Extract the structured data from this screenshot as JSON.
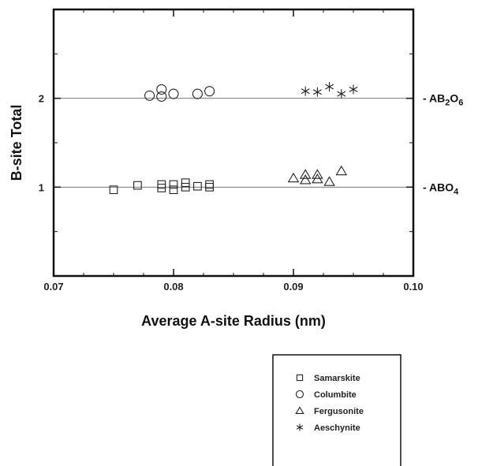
{
  "chart_data": {
    "type": "scatter",
    "title": "",
    "xlabel": "Average A-site Radius (nm)",
    "ylabel": "B-site Total",
    "xlim": [
      0.07,
      0.1
    ],
    "ylim": [
      0,
      3
    ],
    "x_ticks": [
      "0.07",
      "0.08",
      "0.09",
      "0.10"
    ],
    "y_ticks": [
      "1",
      "2"
    ],
    "grid": false,
    "legend_position": "bottom-right",
    "reference_lines": [
      {
        "y": 2,
        "label_prefix": "- AB",
        "sub1": "2",
        "mid": "O",
        "sub2": "6"
      },
      {
        "y": 1,
        "label_prefix": "- ABO",
        "sub1": "",
        "mid": "",
        "sub2": "4"
      }
    ],
    "series": [
      {
        "name": "Samarskite",
        "marker": "square",
        "points": [
          [
            0.075,
            0.97
          ],
          [
            0.077,
            1.02
          ],
          [
            0.079,
            0.99
          ],
          [
            0.079,
            1.03
          ],
          [
            0.08,
            0.97
          ],
          [
            0.08,
            1.03
          ],
          [
            0.081,
            1.0
          ],
          [
            0.081,
            1.05
          ],
          [
            0.082,
            1.01
          ],
          [
            0.083,
            1.0
          ],
          [
            0.083,
            1.03
          ]
        ]
      },
      {
        "name": "Columbite",
        "marker": "circle",
        "points": [
          [
            0.078,
            2.03
          ],
          [
            0.079,
            2.02
          ],
          [
            0.079,
            2.1
          ],
          [
            0.08,
            2.05
          ],
          [
            0.082,
            2.05
          ],
          [
            0.083,
            2.08
          ]
        ]
      },
      {
        "name": "Fergusonite",
        "marker": "triangle",
        "points": [
          [
            0.09,
            1.1
          ],
          [
            0.091,
            1.08
          ],
          [
            0.091,
            1.14
          ],
          [
            0.092,
            1.09
          ],
          [
            0.092,
            1.14
          ],
          [
            0.093,
            1.06
          ],
          [
            0.094,
            1.18
          ]
        ]
      },
      {
        "name": "Aeschynite",
        "marker": "asterisk",
        "points": [
          [
            0.091,
            2.08
          ],
          [
            0.092,
            2.07
          ],
          [
            0.093,
            2.13
          ],
          [
            0.094,
            2.05
          ],
          [
            0.095,
            2.1
          ]
        ]
      }
    ]
  }
}
